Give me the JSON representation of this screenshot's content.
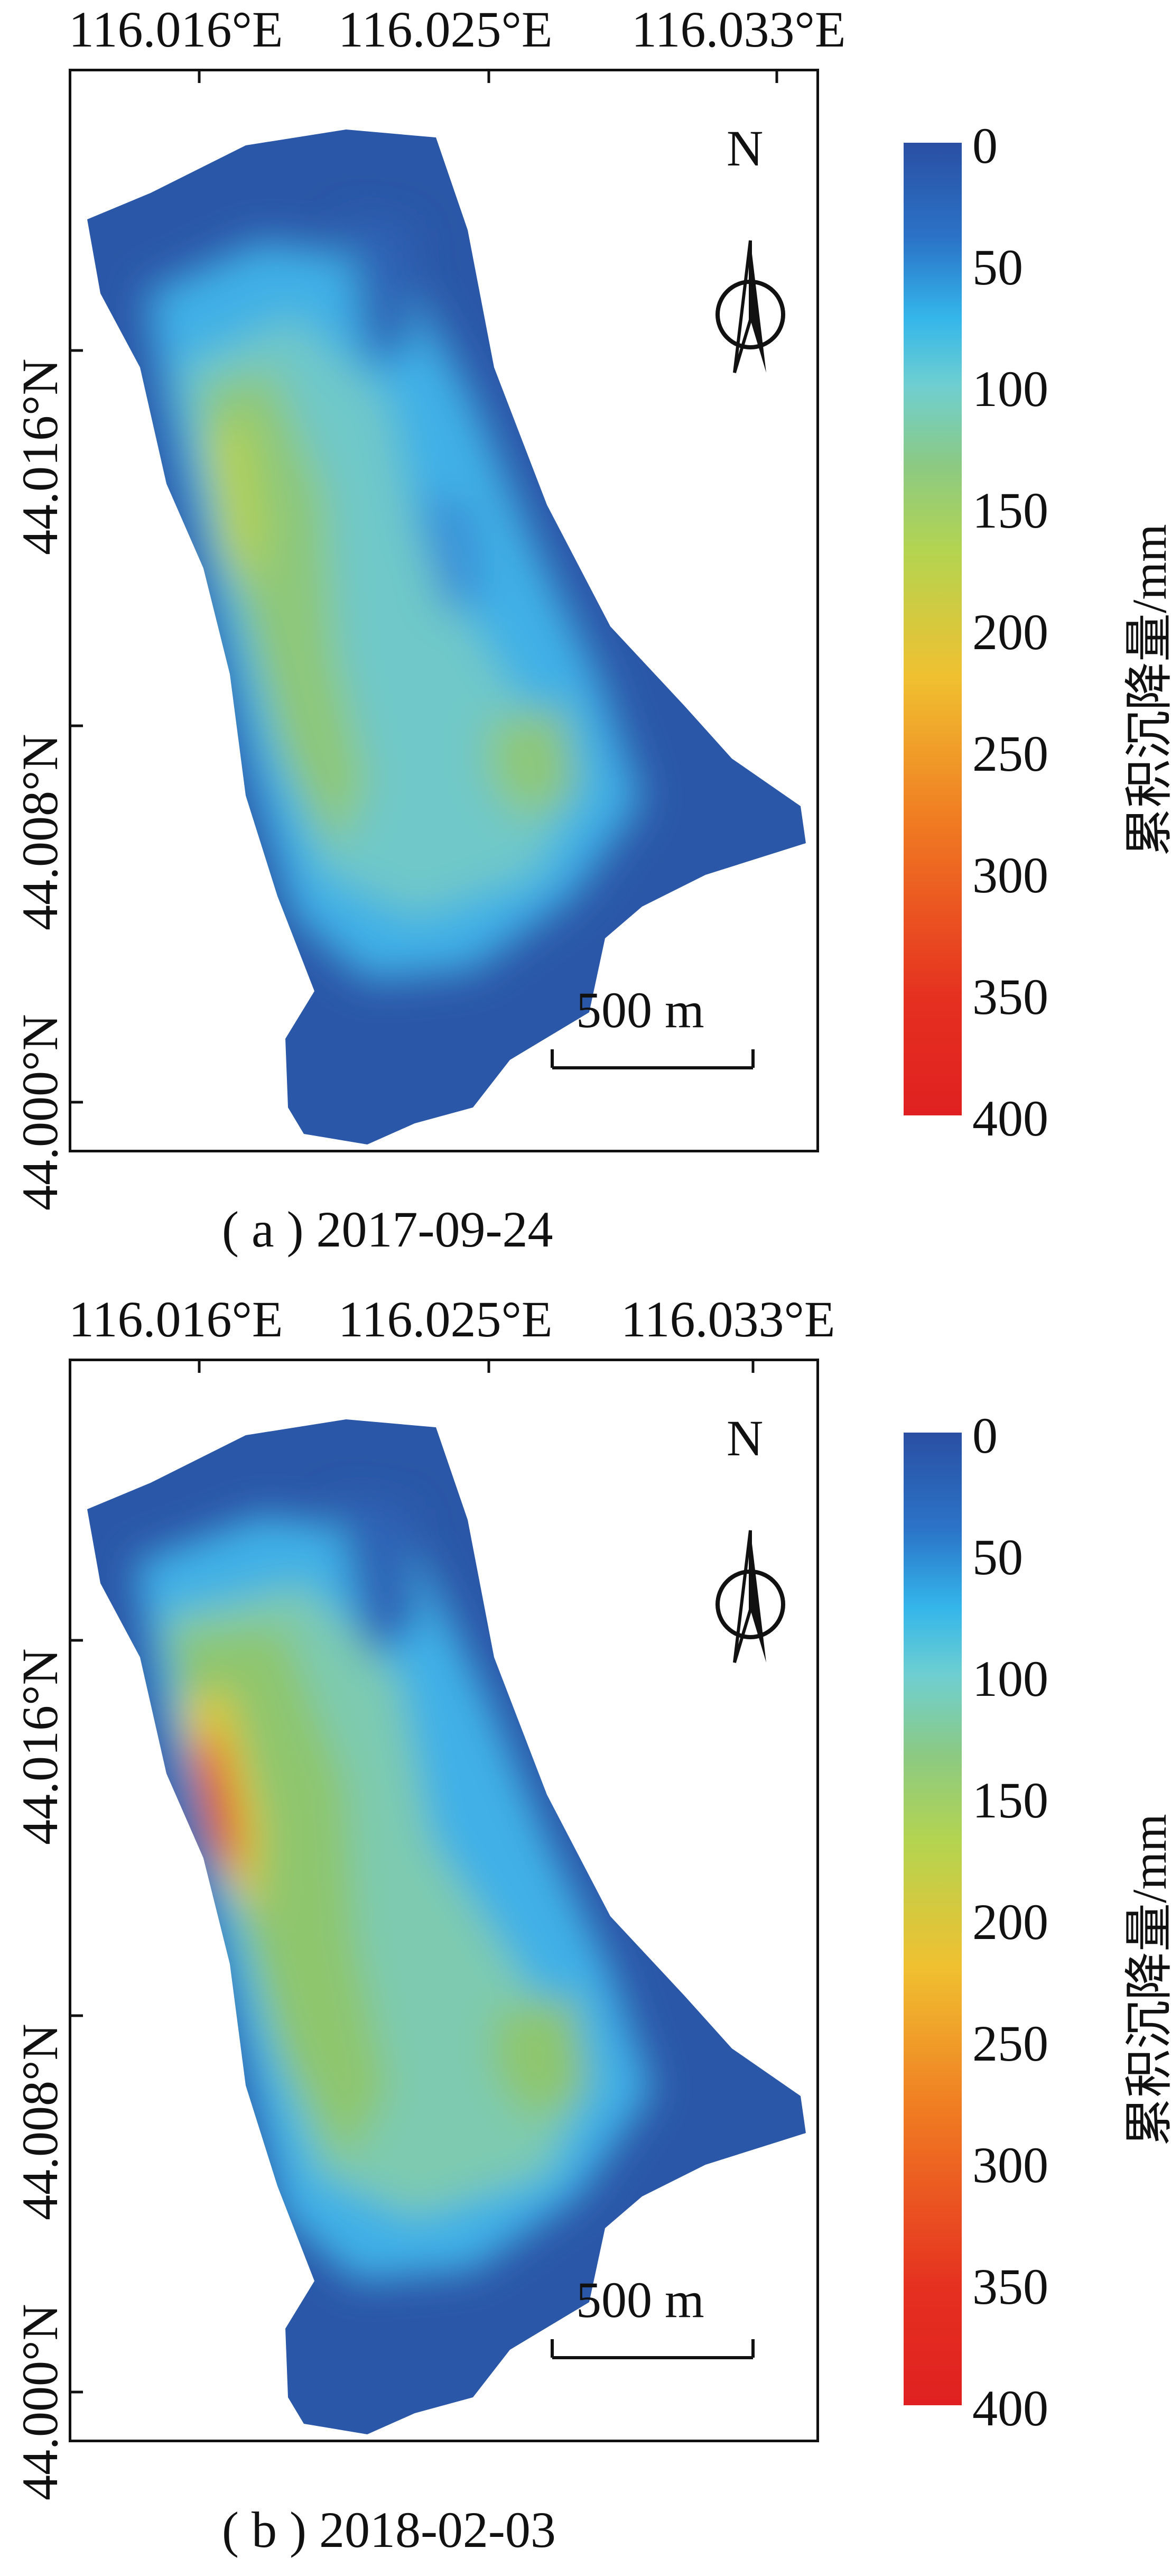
{
  "panels": [
    {
      "id": "a",
      "x_ticks": [
        "116.016°E",
        "116.025°E",
        "116.033°E"
      ],
      "y_ticks": [
        "44.016°N",
        "44.008°N",
        "44.000°N"
      ],
      "north_label": "N",
      "scale_label": "500 m",
      "colorbar_title": "累积沉降量/mm",
      "colorbar_ticks": [
        "0",
        "50",
        "100",
        "150",
        "200",
        "250",
        "300",
        "350",
        "400"
      ],
      "caption": "( a ) 2017-09-24"
    },
    {
      "id": "b",
      "x_ticks": [
        "116.016°E",
        "116.025°E",
        "116.033°E"
      ],
      "y_ticks": [
        "44.016°N",
        "44.008°N",
        "44.000°N"
      ],
      "north_label": "N",
      "scale_label": "500 m",
      "colorbar_title": "累积沉降量/mm",
      "colorbar_ticks": [
        "0",
        "50",
        "100",
        "150",
        "200",
        "250",
        "300",
        "350",
        "400"
      ],
      "caption": "( b ) 2018-02-03"
    }
  ],
  "colors": {
    "deep_blue": "#2a4fa3",
    "light_blue": "#34b6ea",
    "green": "#8bca84",
    "yellow": "#f0c030",
    "red": "#e02020"
  }
}
